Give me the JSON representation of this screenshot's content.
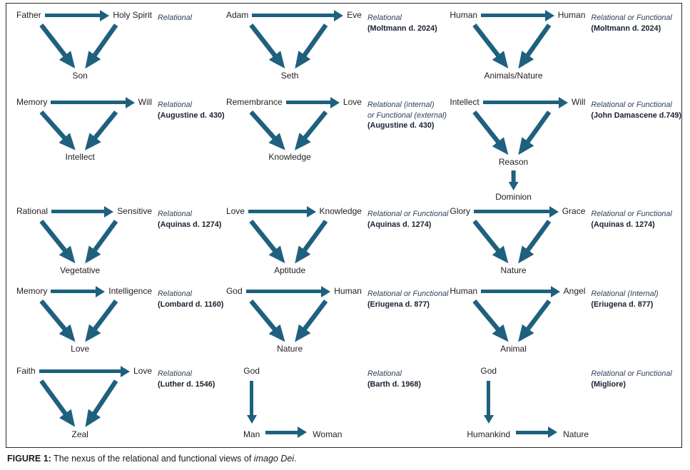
{
  "figure": {
    "caption_label": "FIGURE 1:",
    "caption_text": " The nexus of the relational and functional views of ",
    "caption_italic": "imago Dei",
    "caption_end": "."
  },
  "colors": {
    "arrow": "#1f607f",
    "node_label": "#1f1f1f",
    "annotation_italic": "#31405c",
    "annotation_bold": "#18202e"
  },
  "diagrams": [
    {
      "type": "triangle",
      "top_left": "Father",
      "top_right": "Holy Spirit",
      "bottom": "Son",
      "ann_italic": [
        "Relational"
      ],
      "ann_bold": ""
    },
    {
      "type": "triangle",
      "top_left": "Adam",
      "top_right": "Eve",
      "bottom": "Seth",
      "ann_italic": [
        "Relational"
      ],
      "ann_bold": "(Moltmann d. 2024)"
    },
    {
      "type": "triangle",
      "top_left": "Human",
      "top_right": "Human",
      "bottom": "Animals/Nature",
      "ann_italic": [
        "Relational or Functional"
      ],
      "ann_bold": "(Moltmann d. 2024)"
    },
    {
      "type": "triangle",
      "top_left": "Memory",
      "top_right": "Will",
      "bottom": "Intellect",
      "ann_italic": [
        "Relational"
      ],
      "ann_bold": "(Augustine d. 430)"
    },
    {
      "type": "triangle",
      "top_left": "Remembrance",
      "top_right": "Love",
      "bottom": "Knowledge",
      "ann_italic": [
        "Relational (internal)",
        "or Functional (external)"
      ],
      "ann_bold": "(Augustine d. 430)"
    },
    {
      "type": "triangle_chain",
      "top_left": "Intellect",
      "top_right": "Will",
      "bottom": "Reason",
      "bottom2": "Dominion",
      "ann_italic": [
        "Relational or Functional"
      ],
      "ann_bold": "(John Damascene d.749)"
    },
    {
      "type": "triangle",
      "top_left": "Rational",
      "top_right": "Sensitive",
      "bottom": "Vegetative",
      "ann_italic": [
        "Relational"
      ],
      "ann_bold": "(Aquinas d. 1274)"
    },
    {
      "type": "triangle",
      "top_left": "Love",
      "top_right": "Knowledge",
      "bottom": "Aptitude",
      "ann_italic": [
        "Relational or Functional"
      ],
      "ann_bold": "(Aquinas d. 1274)"
    },
    {
      "type": "triangle",
      "top_left": "Glory",
      "top_right": "Grace",
      "bottom": "Nature",
      "ann_italic": [
        "Relational or Functional"
      ],
      "ann_bold": "(Aquinas d. 1274)"
    },
    {
      "type": "triangle",
      "top_left": "Memory",
      "top_right": "Intelligence",
      "bottom": "Love",
      "ann_italic": [
        "Relational"
      ],
      "ann_bold": "(Lombard d. 1160)"
    },
    {
      "type": "triangle",
      "top_left": "God",
      "top_right": "Human",
      "bottom": "Nature",
      "ann_italic": [
        "Relational or Functional"
      ],
      "ann_bold": "(Eriugena d. 877)"
    },
    {
      "type": "triangle",
      "top_left": "Human",
      "top_right": "Angel",
      "bottom": "Animal",
      "ann_italic": [
        "Relational (Internal)"
      ],
      "ann_bold": "(Eriugena d. 877)"
    },
    {
      "type": "triangle",
      "top_left": "Faith",
      "top_right": "Love",
      "bottom": "Zeal",
      "ann_italic": [
        "Relational"
      ],
      "ann_bold": "(Luther d. 1546)"
    },
    {
      "type": "vertical",
      "top": "God",
      "bottom_left": "Man",
      "bottom_right": "Woman",
      "ann_italic": [
        "Relational"
      ],
      "ann_bold": "(Barth d. 1968)"
    },
    {
      "type": "vertical",
      "top": "God",
      "bottom_left": "Humankind",
      "bottom_right": "Nature",
      "ann_italic": [
        "Relational or Functional"
      ],
      "ann_bold": "(Migliore)"
    }
  ]
}
